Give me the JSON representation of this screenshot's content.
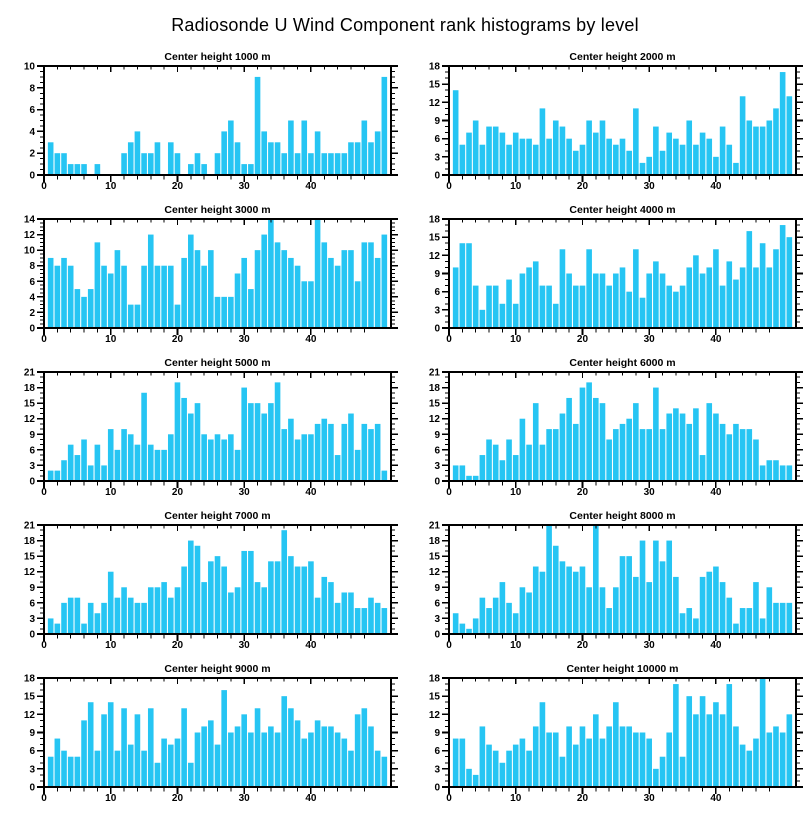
{
  "title": "Radiosonde U Wind Component rank histograms by level",
  "colors": {
    "bar": "#26C5F3",
    "axis": "#000000",
    "background": "#FFFFFF"
  },
  "chart_data": [
    {
      "type": "bar",
      "title": "Center height 1000 m",
      "xlim": [
        0,
        52
      ],
      "x_major_step": 10,
      "x_minor_step": 2,
      "ylim": [
        0,
        10
      ],
      "y_step": 2,
      "y_minor": 0.5,
      "rank_start": 1,
      "values": [
        3,
        2,
        2,
        1,
        1,
        1,
        0,
        1,
        0,
        0,
        0,
        2,
        3,
        4,
        2,
        2,
        3,
        0,
        3,
        2,
        0,
        1,
        2,
        1,
        0,
        2,
        4,
        5,
        3,
        1,
        1,
        9,
        4,
        3,
        3,
        2,
        5,
        2,
        5,
        2,
        4,
        2,
        2,
        2,
        2,
        3,
        3,
        5,
        3,
        4,
        9
      ]
    },
    {
      "type": "bar",
      "title": "Center height 2000 m",
      "xlim": [
        0,
        52
      ],
      "x_major_step": 10,
      "x_minor_step": 2,
      "ylim": [
        0,
        18
      ],
      "y_step": 3,
      "y_minor": 1,
      "rank_start": 1,
      "values": [
        14,
        5,
        7,
        9,
        5,
        8,
        8,
        7,
        5,
        7,
        6,
        6,
        5,
        11,
        6,
        9,
        8,
        6,
        4,
        5,
        9,
        7,
        9,
        6,
        5,
        6,
        4,
        11,
        2,
        3,
        8,
        4,
        7,
        6,
        5,
        9,
        5,
        7,
        6,
        3,
        8,
        5,
        2,
        13,
        9,
        8,
        8,
        9,
        11,
        17,
        13
      ]
    },
    {
      "type": "bar",
      "title": "Center height 3000 m",
      "xlim": [
        0,
        52
      ],
      "x_major_step": 10,
      "x_minor_step": 2,
      "ylim": [
        0,
        14
      ],
      "y_step": 2,
      "y_minor": 0.5,
      "rank_start": 1,
      "values": [
        9,
        8,
        9,
        8,
        5,
        4,
        5,
        11,
        8,
        7,
        10,
        8,
        3,
        3,
        8,
        12,
        8,
        8,
        8,
        3,
        9,
        12,
        10,
        8,
        10,
        4,
        4,
        4,
        7,
        9,
        5,
        10,
        12,
        14,
        11,
        10,
        9,
        8,
        6,
        6,
        14,
        11,
        9,
        8,
        10,
        10,
        6,
        11,
        11,
        9,
        12
      ]
    },
    {
      "type": "bar",
      "title": "Center height 4000 m",
      "xlim": [
        0,
        52
      ],
      "x_major_step": 10,
      "x_minor_step": 2,
      "ylim": [
        0,
        18
      ],
      "y_step": 3,
      "y_minor": 1,
      "rank_start": 1,
      "values": [
        10,
        14,
        14,
        7,
        3,
        7,
        7,
        4,
        8,
        4,
        9,
        10,
        11,
        7,
        7,
        4,
        13,
        9,
        7,
        7,
        13,
        9,
        9,
        7,
        9,
        10,
        6,
        13,
        5,
        9,
        11,
        9,
        7,
        6,
        7,
        10,
        12,
        9,
        10,
        13,
        7,
        11,
        8,
        10,
        16,
        10,
        14,
        10,
        13,
        17,
        15
      ]
    },
    {
      "type": "bar",
      "title": "Center height 5000 m",
      "xlim": [
        0,
        52
      ],
      "x_major_step": 10,
      "x_minor_step": 2,
      "ylim": [
        0,
        21
      ],
      "y_step": 3,
      "y_minor": 1,
      "rank_start": 1,
      "values": [
        2,
        2,
        4,
        7,
        5,
        8,
        3,
        7,
        3,
        10,
        6,
        10,
        9,
        7,
        17,
        7,
        6,
        6,
        9,
        19,
        16,
        13,
        15,
        9,
        8,
        9,
        8,
        9,
        6,
        18,
        15,
        15,
        13,
        15,
        19,
        10,
        12,
        8,
        9,
        9,
        11,
        12,
        11,
        5,
        11,
        13,
        6,
        11,
        10,
        11,
        2
      ]
    },
    {
      "type": "bar",
      "title": "Center height 6000 m",
      "xlim": [
        0,
        52
      ],
      "x_major_step": 10,
      "x_minor_step": 2,
      "ylim": [
        0,
        21
      ],
      "y_step": 3,
      "y_minor": 1,
      "rank_start": 1,
      "values": [
        3,
        3,
        1,
        1,
        5,
        8,
        7,
        4,
        8,
        5,
        12,
        7,
        15,
        7,
        10,
        10,
        13,
        16,
        11,
        18,
        19,
        16,
        15,
        8,
        10,
        11,
        12,
        15,
        10,
        10,
        18,
        10,
        13,
        14,
        13,
        11,
        14,
        5,
        15,
        13,
        11,
        9,
        11,
        10,
        10,
        8,
        3,
        4,
        4,
        3,
        3
      ]
    },
    {
      "type": "bar",
      "title": "Center height 7000 m",
      "xlim": [
        0,
        52
      ],
      "x_major_step": 10,
      "x_minor_step": 2,
      "ylim": [
        0,
        21
      ],
      "y_step": 3,
      "y_minor": 1,
      "rank_start": 1,
      "values": [
        3,
        2,
        6,
        7,
        7,
        2,
        6,
        4,
        6,
        12,
        7,
        9,
        7,
        6,
        6,
        9,
        9,
        10,
        7,
        9,
        13,
        18,
        17,
        10,
        14,
        15,
        13,
        8,
        9,
        16,
        16,
        10,
        9,
        14,
        14,
        20,
        15,
        13,
        13,
        14,
        7,
        11,
        10,
        6,
        8,
        8,
        5,
        5,
        7,
        6,
        5
      ]
    },
    {
      "type": "bar",
      "title": "Center height 8000 m",
      "xlim": [
        0,
        52
      ],
      "x_major_step": 10,
      "x_minor_step": 2,
      "ylim": [
        0,
        21
      ],
      "y_step": 3,
      "y_minor": 1,
      "rank_start": 1,
      "values": [
        4,
        2,
        1,
        3,
        7,
        5,
        7,
        10,
        6,
        4,
        9,
        8,
        13,
        12,
        21,
        17,
        14,
        13,
        12,
        13,
        9,
        21,
        9,
        5,
        9,
        15,
        15,
        11,
        18,
        10,
        18,
        14,
        18,
        11,
        4,
        5,
        3,
        11,
        12,
        13,
        10,
        7,
        2,
        5,
        5,
        10,
        3,
        9,
        6,
        6,
        6
      ]
    },
    {
      "type": "bar",
      "title": "Center height 9000 m",
      "xlim": [
        0,
        52
      ],
      "x_major_step": 10,
      "x_minor_step": 2,
      "ylim": [
        0,
        18
      ],
      "y_step": 3,
      "y_minor": 1,
      "rank_start": 1,
      "values": [
        5,
        8,
        6,
        5,
        5,
        11,
        14,
        6,
        12,
        14,
        6,
        13,
        7,
        12,
        6,
        13,
        4,
        8,
        7,
        8,
        13,
        4,
        9,
        10,
        11,
        7,
        16,
        9,
        10,
        12,
        9,
        13,
        9,
        10,
        9,
        15,
        13,
        11,
        8,
        9,
        11,
        10,
        10,
        9,
        8,
        6,
        12,
        13,
        10,
        6,
        5
      ]
    },
    {
      "type": "bar",
      "title": "Center height 10000 m",
      "xlim": [
        0,
        52
      ],
      "x_major_step": 10,
      "x_minor_step": 2,
      "ylim": [
        0,
        18
      ],
      "y_step": 3,
      "y_minor": 1,
      "rank_start": 1,
      "values": [
        8,
        8,
        3,
        2,
        10,
        7,
        6,
        4,
        6,
        7,
        8,
        6,
        10,
        14,
        9,
        9,
        5,
        10,
        7,
        10,
        8,
        12,
        8,
        10,
        14,
        10,
        10,
        9,
        9,
        8,
        3,
        5,
        9,
        17,
        5,
        15,
        12,
        15,
        12,
        14,
        12,
        17,
        10,
        7,
        6,
        8,
        18,
        9,
        10,
        9,
        12
      ]
    }
  ]
}
